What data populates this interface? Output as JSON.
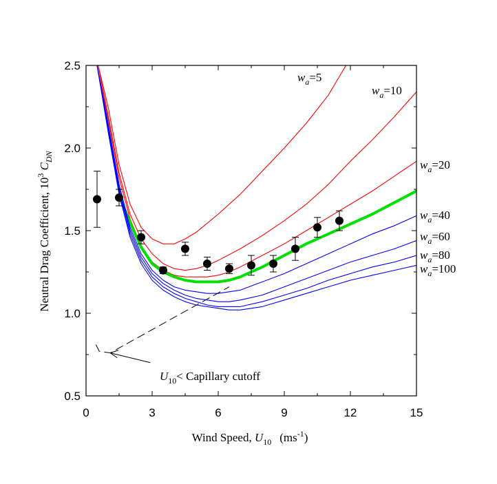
{
  "chart_data": {
    "type": "line",
    "xlabel": "Wind Speed, U10 (ms-1)",
    "ylabel": "Neutral Drag Coefficient, 10^3 C_DN",
    "xlim": [
      0,
      15
    ],
    "ylim": [
      0.5,
      2.5
    ],
    "x_ticks": [
      "0",
      "3",
      "6",
      "9",
      "12",
      "15"
    ],
    "y_ticks": [
      "0.5",
      "1.0",
      "1.5",
      "2.0",
      "2.5"
    ],
    "grid": false,
    "series": [
      {
        "name": "wa=5",
        "color": "#ff0000",
        "x": [
          0.55,
          1,
          1.5,
          2,
          2.5,
          3,
          3.5,
          4,
          4.5,
          5,
          6,
          7,
          8,
          9,
          10,
          11,
          11.8
        ],
        "y": [
          2.5,
          2.25,
          1.9,
          1.66,
          1.52,
          1.45,
          1.42,
          1.42,
          1.45,
          1.49,
          1.6,
          1.72,
          1.86,
          2.0,
          2.15,
          2.32,
          2.5
        ]
      },
      {
        "name": "wa=10",
        "color": "#ff0000",
        "x": [
          0.55,
          1,
          1.5,
          2,
          2.5,
          3,
          3.5,
          4,
          4.5,
          5,
          5.5,
          6,
          7,
          8,
          9,
          10,
          11,
          12,
          13,
          14,
          15
        ],
        "y": [
          2.5,
          2.2,
          1.85,
          1.6,
          1.45,
          1.36,
          1.3,
          1.27,
          1.26,
          1.27,
          1.29,
          1.32,
          1.39,
          1.47,
          1.56,
          1.66,
          1.78,
          1.92,
          2.05,
          2.19,
          2.34
        ]
      },
      {
        "name": "wa=20",
        "color": "#ff0000",
        "x": [
          0.5,
          1,
          1.5,
          2,
          2.5,
          3,
          3.5,
          4,
          4.5,
          5,
          5.5,
          6,
          6.5,
          7,
          8,
          9,
          10,
          11,
          12,
          13,
          14,
          15
        ],
        "y": [
          2.5,
          2.18,
          1.82,
          1.57,
          1.41,
          1.31,
          1.26,
          1.23,
          1.22,
          1.22,
          1.22,
          1.23,
          1.25,
          1.28,
          1.35,
          1.42,
          1.5,
          1.58,
          1.66,
          1.74,
          1.83,
          1.92
        ]
      },
      {
        "name": "green",
        "color": "#00e000",
        "x": [
          1.5,
          2,
          2.5,
          3,
          3.5,
          4,
          4.5,
          5,
          5.5,
          6,
          6.5,
          7,
          8,
          9,
          10,
          11,
          12,
          13,
          14,
          15
        ],
        "y": [
          1.71,
          1.55,
          1.4,
          1.3,
          1.25,
          1.22,
          1.2,
          1.19,
          1.19,
          1.19,
          1.2,
          1.22,
          1.28,
          1.35,
          1.42,
          1.48,
          1.54,
          1.6,
          1.67,
          1.74
        ]
      },
      {
        "name": "wa=40",
        "color": "#0000ff",
        "x": [
          0.5,
          1,
          1.5,
          2,
          2.5,
          3,
          3.5,
          4,
          4.5,
          5,
          5.5,
          6,
          6.5,
          7,
          8,
          9,
          10,
          11,
          12,
          13,
          14,
          15
        ],
        "y": [
          2.5,
          2.15,
          1.78,
          1.52,
          1.36,
          1.26,
          1.2,
          1.16,
          1.14,
          1.13,
          1.12,
          1.12,
          1.13,
          1.14,
          1.19,
          1.24,
          1.3,
          1.36,
          1.42,
          1.48,
          1.53,
          1.59
        ]
      },
      {
        "name": "wa=60",
        "color": "#0000ff",
        "x": [
          0.5,
          1,
          1.5,
          2,
          2.5,
          3,
          3.5,
          4,
          4.5,
          5,
          5.5,
          6,
          6.5,
          7,
          8,
          9,
          10,
          11,
          12,
          13,
          14,
          15
        ],
        "y": [
          2.5,
          2.13,
          1.76,
          1.5,
          1.34,
          1.24,
          1.18,
          1.14,
          1.11,
          1.09,
          1.08,
          1.07,
          1.07,
          1.08,
          1.11,
          1.16,
          1.21,
          1.26,
          1.31,
          1.35,
          1.39,
          1.44
        ]
      },
      {
        "name": "wa=80",
        "color": "#0000ff",
        "x": [
          0.5,
          1,
          1.5,
          2,
          2.5,
          3,
          3.5,
          4,
          4.5,
          5,
          5.5,
          6,
          6.5,
          7,
          8,
          9,
          10,
          11,
          12,
          13,
          14,
          15
        ],
        "y": [
          2.5,
          2.12,
          1.74,
          1.48,
          1.32,
          1.22,
          1.16,
          1.12,
          1.09,
          1.07,
          1.05,
          1.04,
          1.04,
          1.04,
          1.07,
          1.11,
          1.15,
          1.2,
          1.24,
          1.28,
          1.31,
          1.35
        ]
      },
      {
        "name": "wa=100",
        "color": "#0000ff",
        "x": [
          0.5,
          1,
          1.5,
          2,
          2.5,
          3,
          3.5,
          4,
          4.5,
          5,
          5.5,
          6,
          6.5,
          7,
          8,
          9,
          10,
          11,
          12,
          13,
          14,
          15
        ],
        "y": [
          2.5,
          2.1,
          1.72,
          1.46,
          1.3,
          1.2,
          1.14,
          1.1,
          1.07,
          1.05,
          1.04,
          1.03,
          1.02,
          1.02,
          1.04,
          1.08,
          1.12,
          1.16,
          1.2,
          1.23,
          1.26,
          1.29
        ]
      }
    ],
    "points": {
      "x": [
        0.5,
        1.5,
        2.5,
        3.5,
        4.5,
        5.5,
        6.5,
        7.5,
        8.5,
        9.5,
        10.5,
        11.5
      ],
      "y": [
        1.69,
        1.7,
        1.46,
        1.26,
        1.39,
        1.3,
        1.27,
        1.29,
        1.3,
        1.39,
        1.52,
        1.56
      ],
      "err": [
        0.17,
        0.05,
        0.04,
        0.02,
        0.04,
        0.04,
        0.03,
        0.06,
        0.05,
        0.07,
        0.06,
        0.06
      ]
    },
    "cutoff_line": {
      "x": [
        0.45,
        0.6,
        1.1,
        6.5
      ],
      "y": [
        0.81,
        0.77,
        0.76,
        1.16
      ]
    },
    "annotations": [
      {
        "label_var": "w",
        "label_sub": "a",
        "label_value": "=5"
      },
      {
        "label_var": "w",
        "label_sub": "a",
        "label_value": "=10"
      },
      {
        "label_var": "w",
        "label_sub": "a",
        "label_value": "=20"
      },
      {
        "label_var": "w",
        "label_sub": "a",
        "label_value": "=40"
      },
      {
        "label_var": "w",
        "label_sub": "a",
        "label_value": "=60"
      },
      {
        "label_var": "w",
        "label_sub": "a",
        "label_value": "=80"
      },
      {
        "label_var": "w",
        "label_sub": "a",
        "label_value": "=100"
      }
    ],
    "cutoff_annotation": {
      "var": "U",
      "sub": "10",
      "text": "< Capillary cutoff"
    }
  },
  "labels": {
    "xlabel_main": "Wind Speed, ",
    "xlabel_var": "U",
    "xlabel_sub": "10",
    "xlabel_units": "(ms",
    "xlabel_exp": "-1",
    "xlabel_close": ")",
    "ylabel_main": "Neutral Drag Coefficient,  10",
    "ylabel_exp": "3",
    "ylabel_var": " C",
    "ylabel_sub": "DN"
  }
}
